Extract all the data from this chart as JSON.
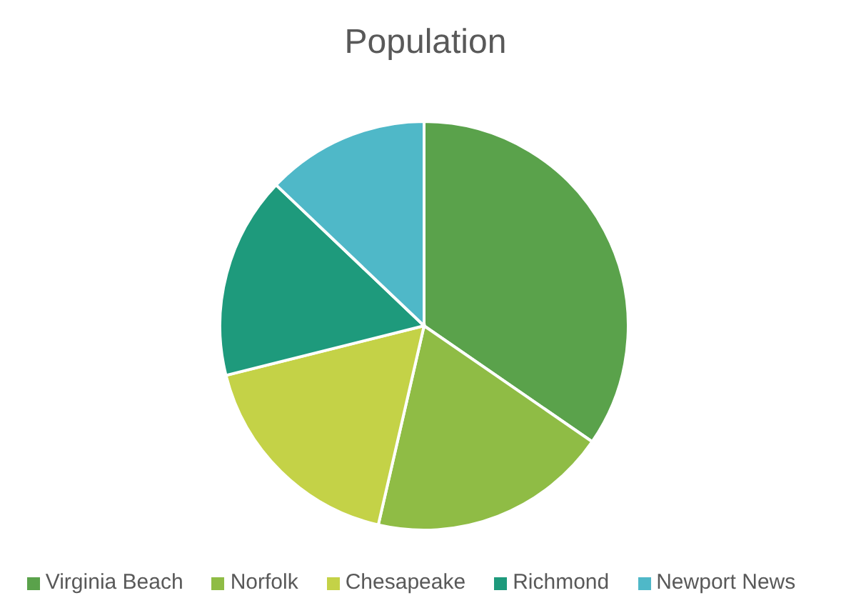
{
  "chart_data": {
    "type": "pie",
    "title": "Population",
    "categories": [
      "Virginia Beach",
      "Norfolk",
      "Chesapeake",
      "Richmond",
      "Newport News"
    ],
    "values": [
      34.6,
      19,
      17.5,
      16,
      12.9
    ],
    "colors": [
      "#5aa24b",
      "#8fbc45",
      "#c4d247",
      "#1e9a7c",
      "#4fb8c8"
    ],
    "legend": "bottom"
  }
}
